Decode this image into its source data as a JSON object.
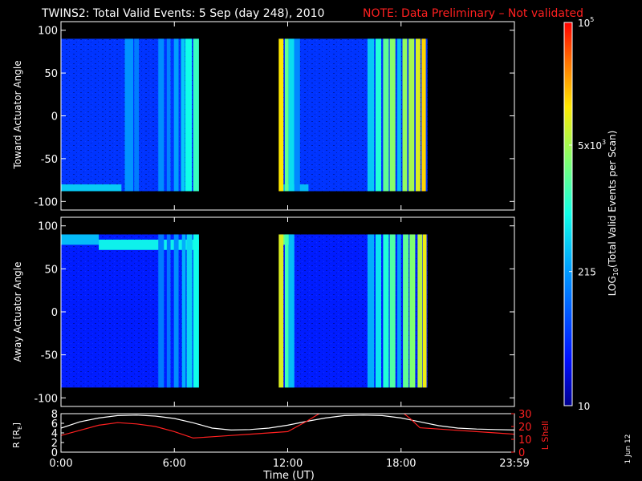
{
  "header": {
    "title": "TWINS2: Total Valid Events:  5 Sep (day 248), 2010",
    "note": "NOTE: Data Preliminary – Not validated"
  },
  "colors": {
    "background": "#000000",
    "note": "#ff2020",
    "lshell": "#ff2020",
    "radius": "#ffffff"
  },
  "date_stamp": "1 Jun 12",
  "chart_data": [
    {
      "type": "heatmap",
      "panel": "toward",
      "ylabel": "Toward Actuator Angle",
      "ylim": [
        -110,
        110
      ],
      "yticks": [
        100,
        50,
        0,
        -50,
        -100
      ],
      "data_y_range": [
        -88,
        90
      ],
      "blocks": [
        {
          "t_start": 0.0,
          "t_end": 7.3
        },
        {
          "t_start": 11.6,
          "t_end": 19.4
        }
      ],
      "stripes": [
        {
          "t": 3.6,
          "w": 0.45,
          "level": 0.34
        },
        {
          "t": 4.0,
          "w": 0.25,
          "level": 0.3
        },
        {
          "t": 5.3,
          "w": 0.3,
          "level": 0.33
        },
        {
          "t": 5.7,
          "w": 0.2,
          "level": 0.31
        },
        {
          "t": 6.1,
          "w": 0.25,
          "level": 0.36
        },
        {
          "t": 6.45,
          "w": 0.2,
          "level": 0.42
        },
        {
          "t": 6.75,
          "w": 0.35,
          "level": 0.5
        },
        {
          "t": 7.15,
          "w": 0.3,
          "level": 0.55
        },
        {
          "t": 11.65,
          "w": 0.25,
          "level": 0.78
        },
        {
          "t": 11.95,
          "w": 0.2,
          "level": 0.6
        },
        {
          "t": 12.2,
          "w": 0.3,
          "level": 0.45
        },
        {
          "t": 12.5,
          "w": 0.3,
          "level": 0.32
        },
        {
          "t": 16.4,
          "w": 0.35,
          "level": 0.42
        },
        {
          "t": 16.8,
          "w": 0.3,
          "level": 0.52
        },
        {
          "t": 17.2,
          "w": 0.3,
          "level": 0.6
        },
        {
          "t": 17.55,
          "w": 0.3,
          "level": 0.65
        },
        {
          "t": 17.9,
          "w": 0.2,
          "level": 0.4
        },
        {
          "t": 18.2,
          "w": 0.25,
          "level": 0.66
        },
        {
          "t": 18.55,
          "w": 0.3,
          "level": 0.68
        },
        {
          "t": 18.9,
          "w": 0.25,
          "level": 0.74
        },
        {
          "t": 19.2,
          "w": 0.22,
          "level": 0.8
        }
      ],
      "bands": [
        {
          "t_start": 0.0,
          "t_end": 3.2,
          "y_start": -88,
          "y_end": -80,
          "level": 0.42
        },
        {
          "t_start": 11.6,
          "t_end": 13.1,
          "y_start": -88,
          "y_end": -80,
          "level": 0.4
        }
      ],
      "base_level": 0.18
    },
    {
      "type": "heatmap",
      "panel": "away",
      "ylabel": "Away Actuator Angle",
      "ylim": [
        -110,
        110
      ],
      "yticks": [
        100,
        50,
        0,
        -50,
        -100
      ],
      "data_y_range": [
        -88,
        90
      ],
      "blocks": [
        {
          "t_start": 0.0,
          "t_end": 7.3
        },
        {
          "t_start": 11.6,
          "t_end": 19.4
        }
      ],
      "stripes": [
        {
          "t": 5.3,
          "w": 0.3,
          "level": 0.3
        },
        {
          "t": 5.7,
          "w": 0.2,
          "level": 0.29
        },
        {
          "t": 6.1,
          "w": 0.25,
          "level": 0.33
        },
        {
          "t": 6.5,
          "w": 0.2,
          "level": 0.38
        },
        {
          "t": 6.8,
          "w": 0.3,
          "level": 0.44
        },
        {
          "t": 7.15,
          "w": 0.3,
          "level": 0.5
        },
        {
          "t": 11.65,
          "w": 0.25,
          "level": 0.74
        },
        {
          "t": 11.95,
          "w": 0.2,
          "level": 0.56
        },
        {
          "t": 12.2,
          "w": 0.3,
          "level": 0.4
        },
        {
          "t": 16.4,
          "w": 0.35,
          "level": 0.38
        },
        {
          "t": 16.8,
          "w": 0.3,
          "level": 0.46
        },
        {
          "t": 17.2,
          "w": 0.3,
          "level": 0.52
        },
        {
          "t": 17.55,
          "w": 0.3,
          "level": 0.58
        },
        {
          "t": 17.9,
          "w": 0.2,
          "level": 0.36
        },
        {
          "t": 18.25,
          "w": 0.3,
          "level": 0.6
        },
        {
          "t": 18.6,
          "w": 0.3,
          "level": 0.64
        },
        {
          "t": 19.0,
          "w": 0.25,
          "level": 0.7
        },
        {
          "t": 19.25,
          "w": 0.2,
          "level": 0.76
        }
      ],
      "bands": [
        {
          "t_start": 0.0,
          "t_end": 2.0,
          "y_start": 78,
          "y_end": 90,
          "level": 0.4
        },
        {
          "t_start": 2.0,
          "t_end": 7.3,
          "y_start": 72,
          "y_end": 84,
          "level": 0.48
        },
        {
          "t_start": 11.6,
          "t_end": 12.3,
          "y_start": 78,
          "y_end": 90,
          "level": 0.6
        }
      ],
      "base_level": 0.14
    },
    {
      "type": "line",
      "panel": "orbit",
      "xlabel": "Time (UT)",
      "xlim": [
        0,
        24
      ],
      "xticks": [
        0,
        6,
        12,
        18,
        24
      ],
      "xticklabels": [
        "0:00",
        "6:00",
        "12:00",
        "18:00",
        "23:59"
      ],
      "ylabel_left": "R [R",
      "ylabel_left_sub": "E",
      "ylabel_left_end": "]",
      "ylim_left": [
        0,
        8
      ],
      "yticks_left": [
        0,
        2,
        4,
        6,
        8
      ],
      "ylabel_right": "L Shell",
      "ylim_right": [
        0,
        30
      ],
      "yticks_right": [
        0,
        10,
        20,
        30
      ],
      "series": [
        {
          "axis": "left",
          "x": [
            0,
            1,
            2,
            3,
            4,
            5,
            6,
            7,
            8,
            9,
            10,
            11,
            12,
            13,
            14,
            15,
            16,
            17,
            18,
            19,
            20,
            21,
            22,
            23,
            24
          ],
          "y": [
            5.0,
            6.3,
            7.1,
            7.6,
            7.7,
            7.5,
            7.0,
            6.1,
            5.0,
            4.6,
            4.7,
            5.0,
            5.6,
            6.4,
            7.1,
            7.6,
            7.7,
            7.6,
            7.1,
            6.3,
            5.5,
            5.0,
            4.8,
            4.7,
            4.6
          ]
        },
        {
          "axis": "right",
          "x": [
            0,
            1,
            2,
            3,
            4,
            5,
            6,
            7,
            8,
            9,
            10,
            11,
            12,
            13,
            14,
            17.9,
            18.5,
            19,
            20,
            21,
            22,
            23,
            24
          ],
          "y": [
            13,
            17,
            21,
            23,
            22,
            20,
            16,
            11,
            12,
            13,
            14,
            15,
            16,
            24,
            33,
            33,
            26,
            19,
            18,
            17,
            16,
            15,
            14
          ]
        }
      ]
    },
    {
      "type": "colorbar",
      "label": "LOG",
      "label_sub": "10",
      "label_end": "(Total Valid Events per Scan)",
      "ticks": [
        {
          "label": "10",
          "level": 0.0
        },
        {
          "label": "215",
          "level": 0.35
        },
        {
          "label": "5x10",
          "sup": "3",
          "level": 0.68
        },
        {
          "label": "10",
          "sup": "5",
          "level": 1.0
        }
      ]
    }
  ]
}
